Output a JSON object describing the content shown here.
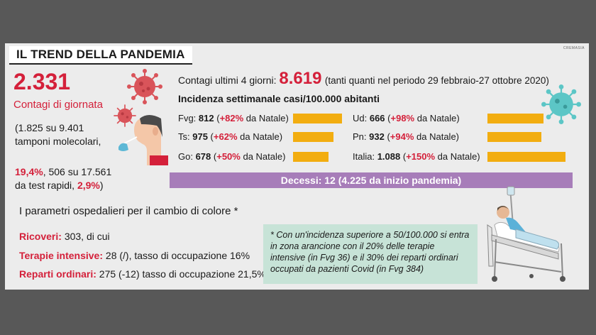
{
  "title": "IL TREND DELLA PANDEMIA",
  "credit": "CREMASIA",
  "daily": {
    "number": "2.331",
    "label": "Contagi di giornata",
    "line1": "(1.825 su 9.401",
    "line2": "tamponi molecolari,",
    "pct_mol": "19,4%",
    "rapid_a": ", 506 su 17.561",
    "line4": "da test rapidi, ",
    "pct_rapid": "2,9%",
    "close": ")"
  },
  "four_days": {
    "label": "Contagi ultimi 4 giorni: ",
    "value": "8.619",
    "note": "(tanti quanti nel periodo 29 febbraio-27 ottobre 2020)"
  },
  "incidence_title": "Incidenza settimanale casi/100.000 abitanti",
  "incidence": [
    {
      "name": "Fvg: ",
      "value": "812",
      "pct": "+82%",
      "tail": " da Natale",
      "level_pct": 82
    },
    {
      "name": "Ts: ",
      "value": "975",
      "pct": "+62%",
      "tail": " da Natale",
      "level_pct": 62
    },
    {
      "name": "Go: ",
      "value": "678",
      "pct": "+50%",
      "tail": " da Natale",
      "level_pct": 50
    },
    {
      "name": "Ud: ",
      "value": "666",
      "pct": "+98%",
      "tail": " da Natale",
      "level_pct": 98
    },
    {
      "name": "Pn: ",
      "value": "932",
      "pct": "+94%",
      "tail": " da Natale",
      "level_pct": 94
    },
    {
      "name": "Italia: ",
      "value": "1.088",
      "pct": "+150%",
      "tail": " da Natale",
      "level_pct": 150
    }
  ],
  "deaths": "Decessi: 12 (4.225 da inizio pandemia)",
  "hospital_title": "I parametri ospedalieri per il cambio di colore *",
  "hospital": {
    "ric_label": "Ricoveri: ",
    "ric_value": "303",
    "ric_tail": ", di cui",
    "ti_label": "Terapie intensive: ",
    "ti_value": "28 (/)",
    "ti_tail": ", tasso di occupazione 16%",
    "ro_label": "Reparti ordinari: ",
    "ro_value": "275 (-12)",
    "ro_tail": " tasso di occupazione 21,5%"
  },
  "note": "* Con un'incidenza superiore a 50/100.000 si entra in zona arancione con il 20% delle terapie intensive (in Fvg 36) e il 30% dei reparti ordinari occupati da pazienti Covid (in Fvg 384)",
  "colors": {
    "red": "#d4203a",
    "bar": "#f2ad10",
    "deaths": "#a77db9",
    "note": "#c7e3d7",
    "virus_red": "#d9545a",
    "virus_teal": "#5cc6c6"
  }
}
